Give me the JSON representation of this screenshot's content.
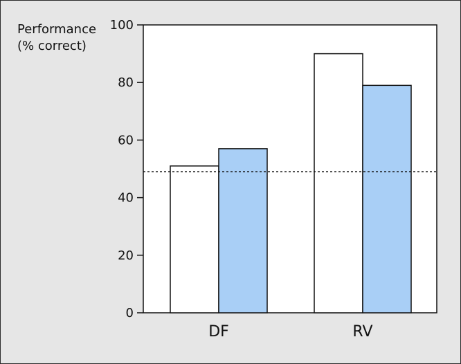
{
  "chart_data": {
    "type": "bar",
    "ylabel_lines": [
      "Performance",
      "(% correct)"
    ],
    "categories": [
      "DF",
      "RV"
    ],
    "series": [
      {
        "values": [
          51,
          90
        ],
        "color": "#ffffff"
      },
      {
        "values": [
          57,
          79
        ],
        "color": "#a9cff6"
      }
    ],
    "ylim": [
      0,
      100
    ],
    "yticks": [
      0,
      20,
      40,
      60,
      80,
      100
    ],
    "reference_line": {
      "value": 49,
      "style": "dotted"
    },
    "grid": false,
    "legend": "none"
  }
}
